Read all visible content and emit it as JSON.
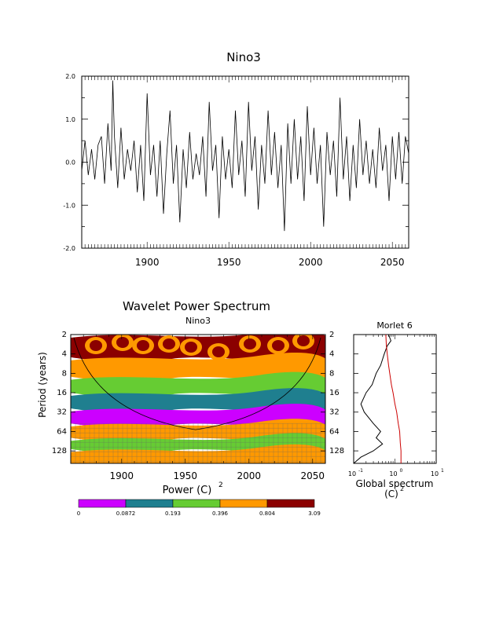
{
  "chart_data": [
    {
      "type": "line",
      "title": "Nino3",
      "xlim": [
        1860,
        2060
      ],
      "ylim": [
        -2.0,
        2.0
      ],
      "x_ticks": [
        1900,
        1950,
        2000,
        2050
      ],
      "y_ticks": [
        "2.0",
        "1.0",
        "0.0",
        "-1.0",
        "-2.0"
      ],
      "x": [
        1860,
        1862,
        1864,
        1866,
        1868,
        1870,
        1872,
        1874,
        1876,
        1878,
        1879,
        1880,
        1882,
        1884,
        1886,
        1888,
        1890,
        1892,
        1894,
        1896,
        1898,
        1900,
        1902,
        1904,
        1906,
        1908,
        1910,
        1912,
        1914,
        1916,
        1918,
        1920,
        1922,
        1924,
        1926,
        1928,
        1930,
        1932,
        1934,
        1936,
        1938,
        1940,
        1942,
        1944,
        1946,
        1948,
        1950,
        1952,
        1954,
        1956,
        1958,
        1960,
        1962,
        1964,
        1966,
        1968,
        1970,
        1972,
        1974,
        1976,
        1978,
        1980,
        1982,
        1984,
        1986,
        1988,
        1990,
        1992,
        1994,
        1996,
        1998,
        2000,
        2002,
        2004,
        2006,
        2008,
        2010,
        2012,
        2014,
        2016,
        2018,
        2020,
        2022,
        2024,
        2026,
        2028,
        2030,
        2032,
        2034,
        2036,
        2038,
        2040,
        2042,
        2044,
        2046,
        2048,
        2050,
        2052,
        2054,
        2056,
        2058,
        2060
      ],
      "values": [
        -0.2,
        0.5,
        -0.3,
        0.3,
        -0.4,
        0.4,
        0.6,
        -0.5,
        0.9,
        -0.2,
        1.9,
        0.6,
        -0.6,
        0.8,
        -0.4,
        0.3,
        -0.2,
        0.5,
        -0.7,
        0.4,
        -0.9,
        1.6,
        -0.3,
        0.4,
        -0.8,
        0.5,
        -1.2,
        0.2,
        1.2,
        -0.5,
        0.4,
        -1.4,
        0.3,
        -0.6,
        0.7,
        -0.4,
        0.2,
        -0.3,
        0.6,
        -0.8,
        1.4,
        -0.2,
        0.4,
        -1.3,
        0.6,
        -0.4,
        0.3,
        -0.6,
        1.2,
        -0.3,
        0.5,
        -0.8,
        1.4,
        -0.2,
        0.6,
        -1.1,
        0.4,
        -0.5,
        1.2,
        -0.3,
        0.7,
        -0.6,
        0.4,
        -1.6,
        0.9,
        -0.5,
        1.0,
        -0.4,
        0.6,
        -0.9,
        1.3,
        -0.3,
        0.8,
        -0.5,
        0.4,
        -1.5,
        0.7,
        -0.3,
        0.5,
        -0.8,
        1.5,
        -0.4,
        0.6,
        -0.9,
        0.4,
        -0.6,
        1.0,
        -0.3,
        0.5,
        -0.5,
        0.3,
        -0.6,
        0.8,
        -0.2,
        0.4,
        -0.9,
        0.6,
        -0.4,
        0.7,
        -0.5,
        0.6,
        0.2
      ]
    },
    {
      "type": "heatmap",
      "title": "Wavelet Power Spectrum",
      "subtitle": "Nino3",
      "xlabel": "Power (C)",
      "xlabel_sup": "2",
      "ylabel": "Period (years)",
      "xlim": [
        1860,
        2060
      ],
      "x_ticks": [
        1900,
        1950,
        2000,
        2050
      ],
      "y_ticks": [
        2,
        4,
        8,
        16,
        32,
        64,
        128
      ],
      "period_range": [
        2,
        200
      ],
      "colorbar": {
        "labels": [
          "0",
          "0.0872",
          "0.193",
          "0.396",
          "0.804",
          "3.09"
        ],
        "colors": [
          "#cc00ff",
          "#1f7f8f",
          "#66cc33",
          "#ff9900",
          "#8b0000"
        ]
      },
      "bands": [
        {
          "p0": 2,
          "p1": 4.5,
          "level": 4
        },
        {
          "p0": 4.5,
          "p1": 9,
          "level": 3
        },
        {
          "p0": 9,
          "p1": 16,
          "level": 2
        },
        {
          "p0": 16,
          "p1": 28,
          "level": 1
        },
        {
          "p0": 28,
          "p1": 48,
          "level": 0
        },
        {
          "p0": 48,
          "p1": 80,
          "level": 3
        },
        {
          "p0": 80,
          "p1": 120,
          "level": 2
        },
        {
          "p0": 120,
          "p1": 200,
          "level": 3
        }
      ]
    },
    {
      "type": "line",
      "title": "Morlet 6",
      "xlabel": "Global spectrum",
      "xlabel2": "(C)",
      "xlabel2_sup": "2",
      "x_scale": "log",
      "xlim": [
        0.1,
        10
      ],
      "x_ticks": [
        "10",
        "10",
        "10"
      ],
      "x_tick_exps": [
        "-1",
        "0",
        "1"
      ],
      "y_ticks": [
        2,
        4,
        8,
        16,
        32,
        64,
        128
      ],
      "series": [
        {
          "color": "#000000",
          "period": [
            2,
            2.5,
            3,
            4,
            6,
            8,
            12,
            16,
            24,
            32,
            48,
            64,
            80,
            100,
            128,
            160,
            200
          ],
          "power": [
            0.7,
            0.8,
            0.65,
            0.55,
            0.45,
            0.35,
            0.28,
            0.2,
            0.15,
            0.18,
            0.3,
            0.45,
            0.35,
            0.5,
            0.3,
            0.15,
            0.1
          ]
        },
        {
          "color": "#cc0000",
          "period": [
            2,
            3,
            4,
            6,
            8,
            12,
            16,
            24,
            32,
            48,
            64,
            96,
            128,
            200
          ],
          "power": [
            0.6,
            0.62,
            0.65,
            0.7,
            0.75,
            0.82,
            0.9,
            1.0,
            1.1,
            1.2,
            1.3,
            1.35,
            1.4,
            1.4
          ]
        }
      ]
    }
  ]
}
